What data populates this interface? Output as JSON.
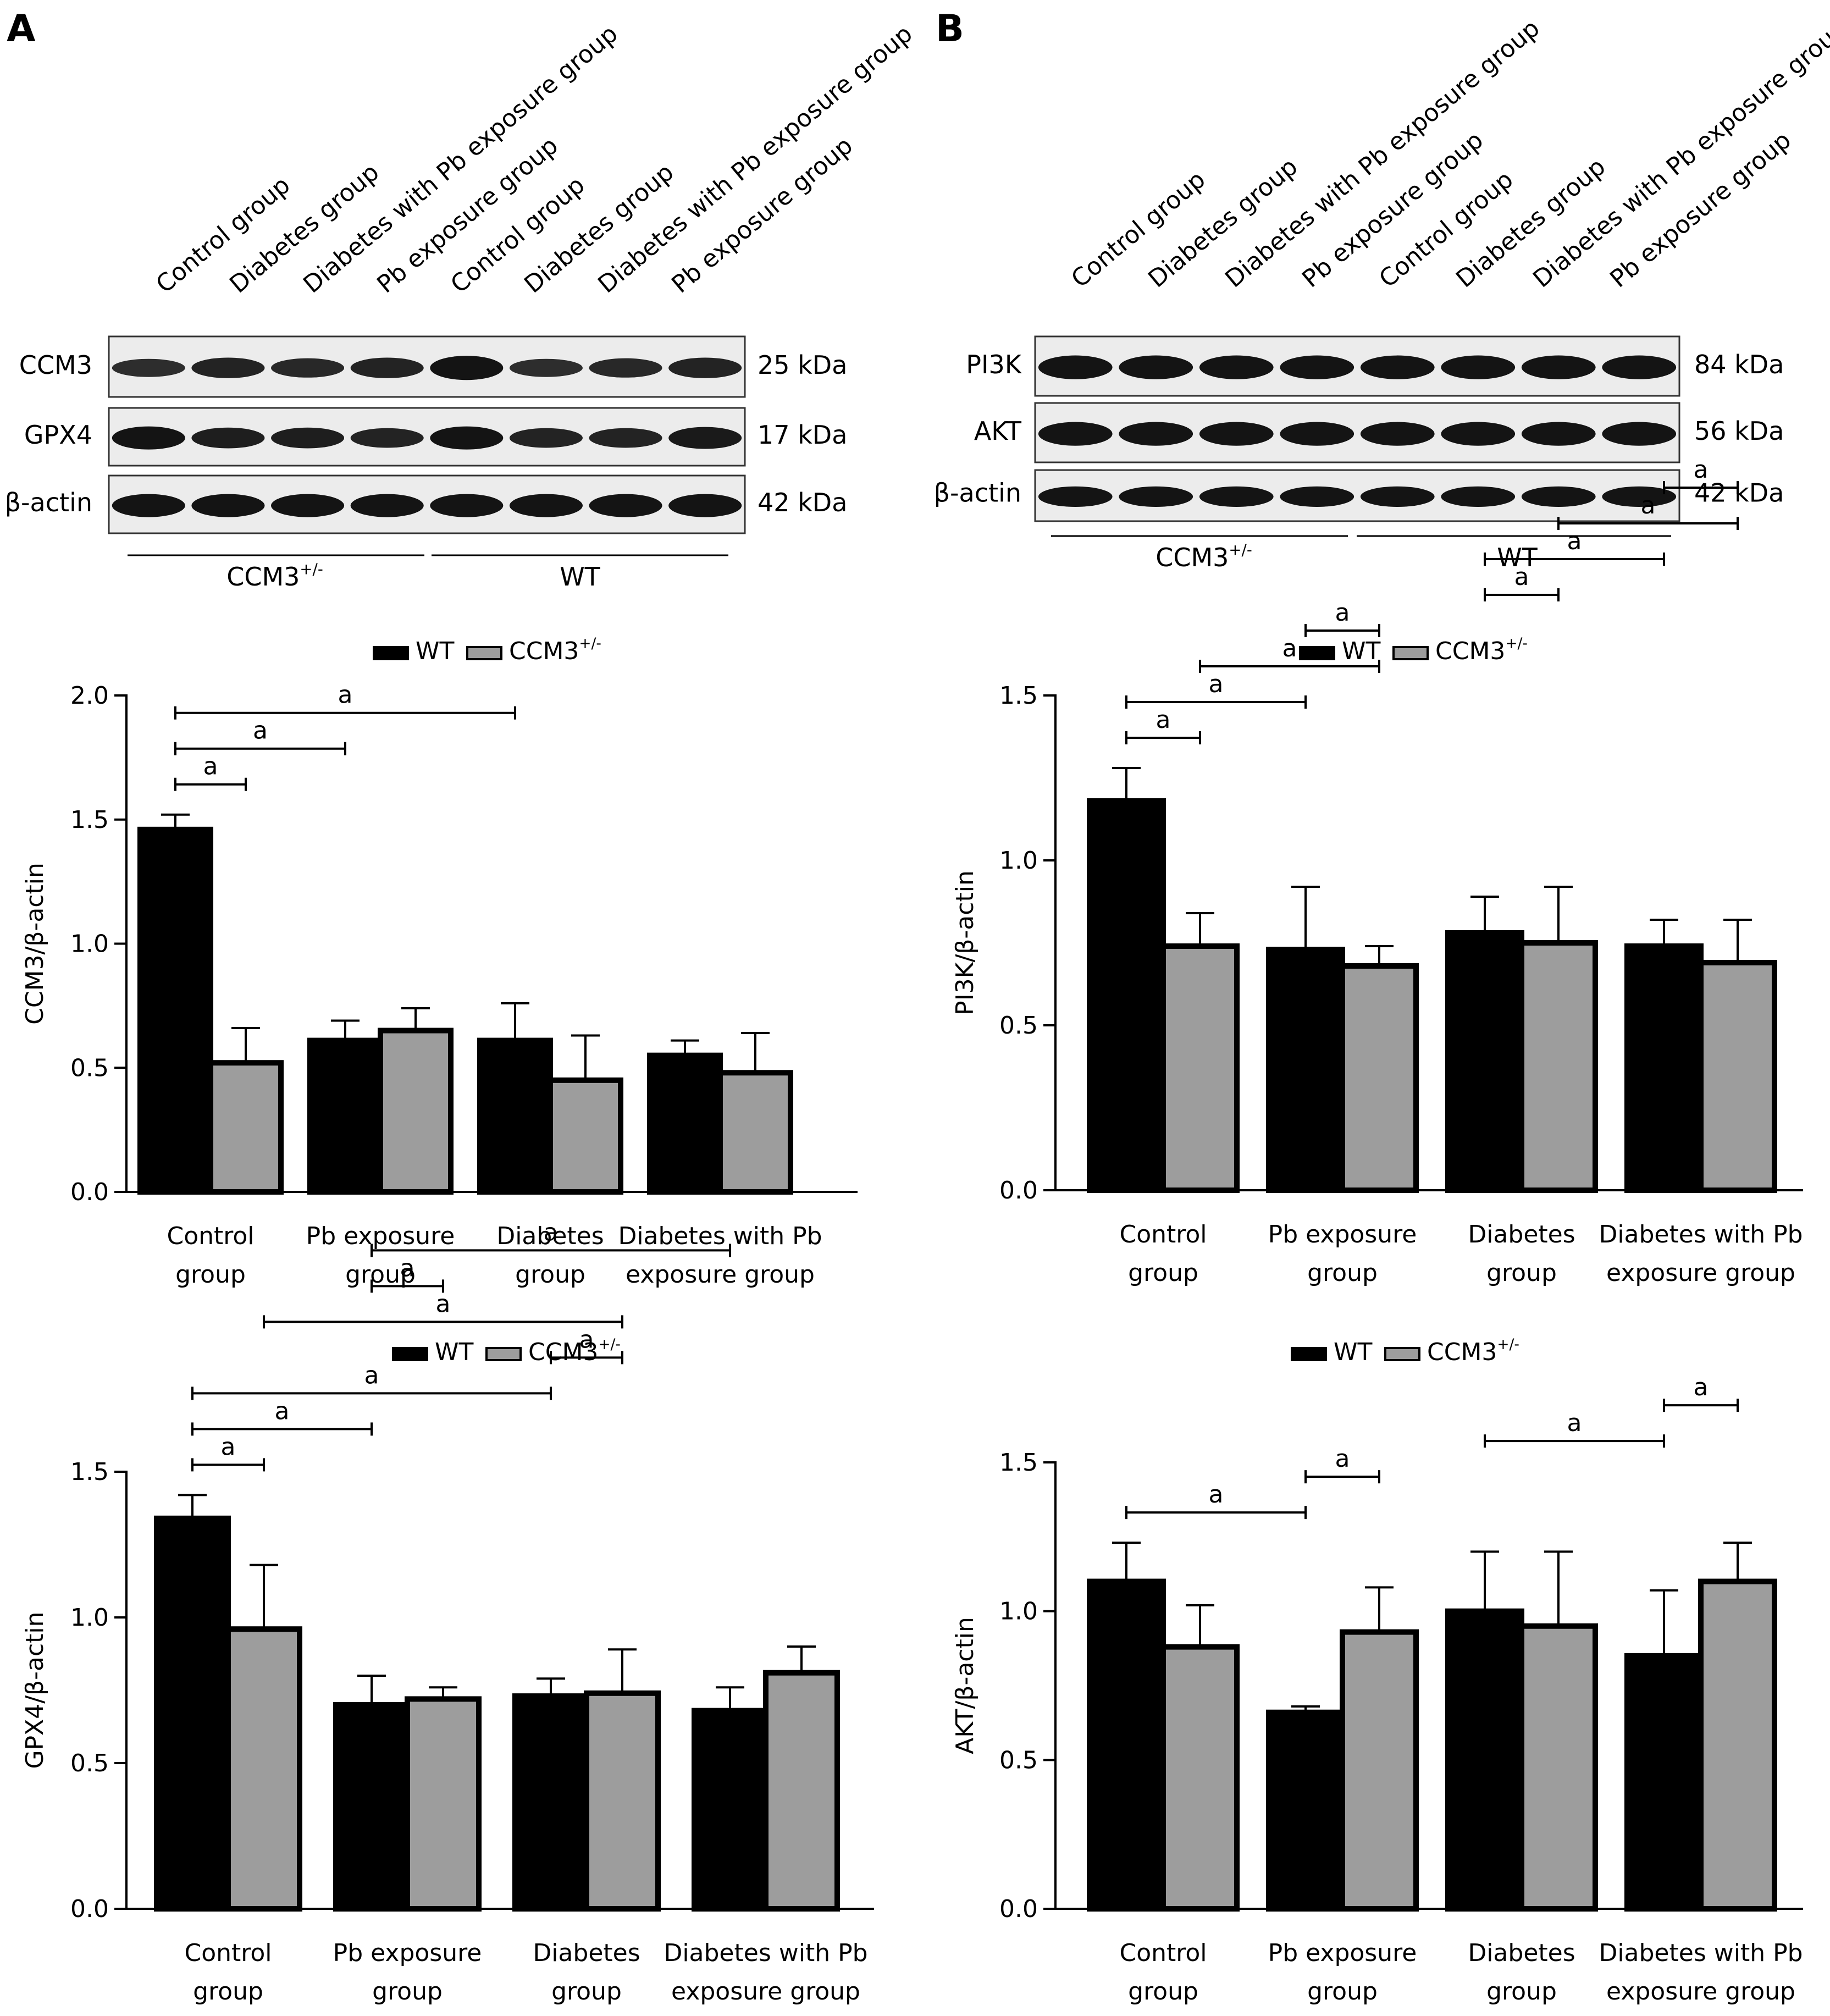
{
  "colors": {
    "wt": "#000000",
    "ccm3": "#9d9d9d"
  },
  "panels": [
    {
      "letter": "A",
      "lanes": [
        "Control group",
        "Diabetes group",
        "Diabetes with Pb exposure group",
        "Pb exposure group",
        "Control group",
        "Diabetes group",
        "Diabetes with Pb exposure group",
        "Pb exposure group"
      ],
      "blots": [
        {
          "name": "CCM3",
          "kda": "25 kDa"
        },
        {
          "name": "GPX4",
          "kda": "17 kDa"
        },
        {
          "name": "β-actin",
          "kda": "42 kDa"
        }
      ],
      "groups": [
        {
          "label": "CCM3",
          "sup": "+/-"
        },
        {
          "label": "WT",
          "sup": ""
        }
      ]
    },
    {
      "letter": "B",
      "lanes": [
        "Control group",
        "Diabetes group",
        "Diabetes with Pb exposure group",
        "Pb exposure group",
        "Control group",
        "Diabetes group",
        "Diabetes with Pb exposure group",
        "Pb exposure group"
      ],
      "blots": [
        {
          "name": "PI3K",
          "kda": "84 kDa"
        },
        {
          "name": "AKT",
          "kda": "56 kDa"
        },
        {
          "name": "β-actin",
          "kda": "42 kDa"
        }
      ],
      "groups": [
        {
          "label": "CCM3",
          "sup": "+/-"
        },
        {
          "label": "WT",
          "sup": ""
        }
      ]
    }
  ],
  "chart_data": [
    {
      "type": "bar",
      "ylabel": "CCM3/β-actin",
      "ylim": [
        0,
        2.0
      ],
      "yticks": [
        "0.0",
        "0.5",
        "1.0",
        "1.5",
        "2.0"
      ],
      "categories": [
        [
          "Control",
          "group"
        ],
        [
          "Pb exposure",
          "group"
        ],
        [
          "Diabetes",
          "group"
        ],
        [
          "Diabetes with Pb",
          "exposure group"
        ]
      ],
      "legend": [
        {
          "label": "WT",
          "sup": ""
        },
        {
          "label": "CCM3",
          "sup": "+/-"
        }
      ],
      "series": [
        {
          "values": [
            1.46,
            0.61,
            0.61,
            0.55
          ],
          "errors": [
            0.06,
            0.08,
            0.15,
            0.06
          ]
        },
        {
          "values": [
            0.52,
            0.65,
            0.45,
            0.48
          ],
          "errors": [
            0.14,
            0.09,
            0.18,
            0.16
          ]
        }
      ],
      "significance": [
        {
          "from": [
            0,
            0
          ],
          "to": [
            0,
            1
          ],
          "label": "a"
        },
        {
          "from": [
            0,
            0
          ],
          "to": [
            1,
            0
          ],
          "label": "a"
        },
        {
          "from": [
            0,
            0
          ],
          "to": [
            2,
            0
          ],
          "label": "a"
        }
      ]
    },
    {
      "type": "bar",
      "ylabel": "PI3K/β-actin",
      "ylim": [
        0,
        1.5
      ],
      "yticks": [
        "0.0",
        "0.5",
        "1.0",
        "1.5"
      ],
      "categories": [
        [
          "Control",
          "group"
        ],
        [
          "Pb exposure",
          "group"
        ],
        [
          "Diabetes",
          "group"
        ],
        [
          "Diabetes with Pb",
          "exposure group"
        ]
      ],
      "legend": [
        {
          "label": "WT",
          "sup": ""
        },
        {
          "label": "CCM3",
          "sup": "+/-"
        }
      ],
      "series": [
        {
          "values": [
            1.18,
            0.73,
            0.78,
            0.74
          ],
          "errors": [
            0.1,
            0.19,
            0.11,
            0.08
          ]
        },
        {
          "values": [
            0.74,
            0.68,
            0.75,
            0.69
          ],
          "errors": [
            0.1,
            0.06,
            0.17,
            0.13
          ]
        }
      ],
      "significance": [
        {
          "from": [
            0,
            0
          ],
          "to": [
            0,
            1
          ],
          "label": "a"
        },
        {
          "from": [
            0,
            0
          ],
          "to": [
            1,
            0
          ],
          "label": "a"
        },
        {
          "from": [
            0,
            1
          ],
          "to": [
            1,
            1
          ],
          "label": "a"
        },
        {
          "from": [
            1,
            0
          ],
          "to": [
            1,
            1
          ],
          "label": "a"
        },
        {
          "from": [
            2,
            0
          ],
          "to": [
            2,
            1
          ],
          "label": "a"
        },
        {
          "from": [
            2,
            0
          ],
          "to": [
            3,
            0
          ],
          "label": "a"
        },
        {
          "from": [
            2,
            1
          ],
          "to": [
            3,
            1
          ],
          "label": "a"
        },
        {
          "from": [
            3,
            0
          ],
          "to": [
            3,
            1
          ],
          "label": "a"
        }
      ]
    },
    {
      "type": "bar",
      "ylabel": "GPX4/β-actin",
      "ylim": [
        0,
        1.5
      ],
      "yticks": [
        "0.0",
        "0.5",
        "1.0",
        "1.5"
      ],
      "categories": [
        [
          "Control",
          "group"
        ],
        [
          "Pb exposure",
          "group"
        ],
        [
          "Diabetes",
          "group"
        ],
        [
          "Diabetes with Pb",
          "exposure group"
        ]
      ],
      "legend": [
        {
          "label": "WT",
          "sup": ""
        },
        {
          "label": "CCM3",
          "sup": "+/-"
        }
      ],
      "series": [
        {
          "values": [
            1.34,
            0.7,
            0.73,
            0.68
          ],
          "errors": [
            0.08,
            0.1,
            0.06,
            0.08
          ]
        },
        {
          "values": [
            0.96,
            0.72,
            0.74,
            0.81
          ],
          "errors": [
            0.22,
            0.04,
            0.15,
            0.09
          ]
        }
      ],
      "significance": [
        {
          "from": [
            0,
            0
          ],
          "to": [
            0,
            1
          ],
          "label": "a"
        },
        {
          "from": [
            0,
            0
          ],
          "to": [
            1,
            0
          ],
          "label": "a"
        },
        {
          "from": [
            0,
            0
          ],
          "to": [
            2,
            0
          ],
          "label": "a"
        },
        {
          "from": [
            2,
            0
          ],
          "to": [
            2,
            1
          ],
          "label": "a"
        },
        {
          "from": [
            0,
            1
          ],
          "to": [
            2,
            1
          ],
          "label": "a"
        },
        {
          "from": [
            1,
            0
          ],
          "to": [
            1,
            1
          ],
          "label": "a"
        },
        {
          "from": [
            1,
            0
          ],
          "to": [
            3,
            0
          ],
          "label": "a"
        }
      ]
    },
    {
      "type": "bar",
      "ylabel": "AKT/β-actin",
      "ylim": [
        0,
        1.5
      ],
      "yticks": [
        "0.0",
        "0.5",
        "1.0",
        "1.5"
      ],
      "categories": [
        [
          "Control",
          "group"
        ],
        [
          "Pb exposure",
          "group"
        ],
        [
          "Diabetes",
          "group"
        ],
        [
          "Diabetes with Pb",
          "exposure group"
        ]
      ],
      "legend": [
        {
          "label": "WT",
          "sup": ""
        },
        {
          "label": "CCM3",
          "sup": "+/-"
        }
      ],
      "series": [
        {
          "values": [
            1.1,
            0.66,
            1.0,
            0.85
          ],
          "errors": [
            0.13,
            0.02,
            0.2,
            0.22
          ]
        },
        {
          "values": [
            0.88,
            0.93,
            0.95,
            1.1
          ],
          "errors": [
            0.14,
            0.15,
            0.25,
            0.13
          ]
        }
      ],
      "significance": [
        {
          "from": [
            0,
            0
          ],
          "to": [
            1,
            0
          ],
          "label": "a"
        },
        {
          "from": [
            1,
            0
          ],
          "to": [
            1,
            1
          ],
          "label": "a"
        },
        {
          "from": [
            2,
            0
          ],
          "to": [
            3,
            0
          ],
          "label": "a"
        },
        {
          "from": [
            3,
            0
          ],
          "to": [
            3,
            1
          ],
          "label": "a"
        }
      ]
    }
  ]
}
